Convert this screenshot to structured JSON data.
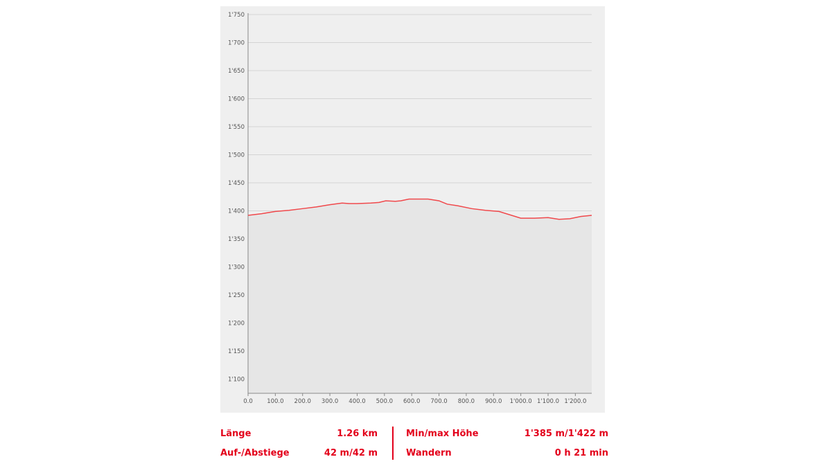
{
  "colors": {
    "accent": "#e3001b",
    "line": "#f0484b",
    "fill": "#e6e6e6",
    "panel": "#efefef",
    "grid": "#d4d4d4"
  },
  "chart_data": {
    "type": "area",
    "title": "",
    "xlabel": "",
    "ylabel": "",
    "xlim": [
      0,
      1260
    ],
    "ylim": [
      1060,
      1750
    ],
    "grid": true,
    "yticks": [
      {
        "v": 1750,
        "label": "1'750"
      },
      {
        "v": 1700,
        "label": "1'700"
      },
      {
        "v": 1650,
        "label": "1'650"
      },
      {
        "v": 1600,
        "label": "1'600"
      },
      {
        "v": 1550,
        "label": "1'550"
      },
      {
        "v": 1500,
        "label": "1'500"
      },
      {
        "v": 1450,
        "label": "1'450"
      },
      {
        "v": 1400,
        "label": "1'400"
      },
      {
        "v": 1350,
        "label": "1'350"
      },
      {
        "v": 1300,
        "label": "1'300"
      },
      {
        "v": 1250,
        "label": "1'250"
      },
      {
        "v": 1200,
        "label": "1'200"
      },
      {
        "v": 1150,
        "label": "1'150"
      },
      {
        "v": 1100,
        "label": "1'100"
      }
    ],
    "xticks": [
      {
        "v": 0,
        "label": "0.0"
      },
      {
        "v": 100,
        "label": "100.0"
      },
      {
        "v": 200,
        "label": "200.0"
      },
      {
        "v": 300,
        "label": "300.0"
      },
      {
        "v": 400,
        "label": "400.0"
      },
      {
        "v": 500,
        "label": "500.0"
      },
      {
        "v": 600,
        "label": "600.0"
      },
      {
        "v": 700,
        "label": "700.0"
      },
      {
        "v": 800,
        "label": "800.0"
      },
      {
        "v": 900,
        "label": "900.0"
      },
      {
        "v": 1000,
        "label": "1'000.0"
      },
      {
        "v": 1100,
        "label": "1'100.0"
      },
      {
        "v": 1200,
        "label": "1'200.0"
      }
    ],
    "x": [
      0,
      50,
      100,
      150,
      200,
      250,
      300,
      345,
      370,
      400,
      450,
      480,
      505,
      540,
      560,
      590,
      620,
      660,
      700,
      730,
      770,
      820,
      870,
      920,
      960,
      1000,
      1050,
      1100,
      1140,
      1180,
      1220,
      1260
    ],
    "y": [
      1392,
      1395,
      1399,
      1401,
      1404,
      1407,
      1411,
      1414,
      1413,
      1413,
      1414,
      1415,
      1418,
      1417,
      1418,
      1421,
      1421,
      1421,
      1418,
      1412,
      1409,
      1404,
      1401,
      1399,
      1393,
      1387,
      1387,
      1388,
      1385,
      1386,
      1390,
      1392
    ]
  },
  "stats": {
    "length_label": "Länge",
    "length_value": "1.26 km",
    "ascent_label": "Auf-/Abstiege",
    "ascent_value": "42 m/42 m",
    "minmax_label": "Min/max Höhe",
    "minmax_value": "1'385 m/1'422 m",
    "hike_label": "Wandern",
    "hike_value": "0 h 21 min"
  }
}
